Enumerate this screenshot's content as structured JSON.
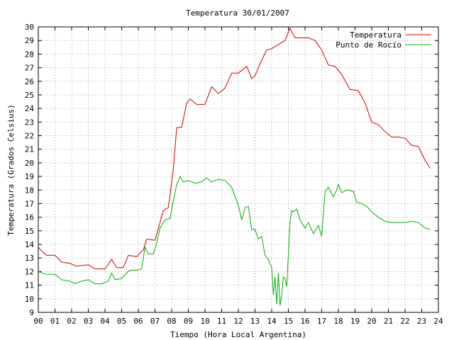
{
  "chart_data": {
    "type": "line",
    "title": "Temperatura 30/01/2007",
    "xlabel": "Tiempo (Hora Local Argentina)",
    "ylabel": "Temperatura (Grados Celsius)",
    "xlim": [
      0,
      24
    ],
    "ylim": [
      9,
      30
    ],
    "xticks": [
      "00",
      "01",
      "02",
      "03",
      "04",
      "05",
      "06",
      "07",
      "08",
      "09",
      "10",
      "11",
      "12",
      "13",
      "14",
      "15",
      "16",
      "17",
      "18",
      "19",
      "20",
      "21",
      "22",
      "23",
      "24"
    ],
    "yticks": [
      9,
      10,
      11,
      12,
      13,
      14,
      15,
      16,
      17,
      18,
      19,
      20,
      21,
      22,
      23,
      24,
      25,
      26,
      27,
      28,
      29,
      30
    ],
    "grid": true,
    "legend_position": "top-right",
    "series": [
      {
        "name": "Temperatura",
        "color": "#cc0000",
        "x": [
          0,
          0.2,
          0.5,
          1.0,
          1.4,
          1.9,
          2.3,
          3.0,
          3.4,
          4.0,
          4.4,
          4.7,
          5.1,
          5.4,
          5.9,
          6.3,
          6.5,
          7.0,
          7.3,
          7.5,
          7.8,
          8.1,
          8.3,
          8.6,
          8.9,
          9.1,
          9.5,
          10.0,
          10.4,
          10.8,
          11.2,
          11.6,
          12.0,
          12.5,
          12.8,
          13.0,
          13.3,
          13.7,
          14.0,
          14.4,
          14.8,
          15.1,
          15.4,
          15.8,
          16.2,
          16.6,
          17.0,
          17.4,
          17.8,
          18.2,
          18.7,
          19.2,
          19.6,
          20.0,
          20.4,
          20.8,
          21.2,
          21.6,
          22.0,
          22.4,
          22.8,
          23.2,
          23.5
        ],
        "y": [
          13.8,
          13.5,
          13.2,
          13.2,
          12.7,
          12.6,
          12.4,
          12.5,
          12.2,
          12.2,
          12.9,
          12.3,
          12.3,
          13.2,
          13.1,
          13.6,
          14.4,
          14.3,
          15.6,
          16.5,
          16.7,
          19.5,
          22.6,
          22.6,
          24.4,
          24.7,
          24.3,
          24.3,
          25.6,
          25.1,
          25.5,
          26.6,
          26.6,
          27.1,
          26.2,
          26.4,
          27.3,
          28.3,
          28.4,
          28.7,
          29.0,
          29.9,
          29.2,
          29.2,
          29.2,
          29.0,
          28.3,
          27.2,
          27.1,
          26.5,
          25.4,
          25.3,
          24.4,
          23.0,
          22.8,
          22.3,
          21.9,
          21.9,
          21.8,
          21.3,
          21.2,
          20.2,
          19.6
        ]
      },
      {
        "name": "Punto de Rocío",
        "color": "#00b000",
        "x": [
          0,
          0.2,
          0.5,
          1.0,
          1.4,
          1.9,
          2.2,
          2.6,
          3.0,
          3.4,
          3.8,
          4.2,
          4.4,
          4.6,
          5.0,
          5.3,
          5.5,
          5.9,
          6.2,
          6.4,
          6.6,
          6.9,
          7.1,
          7.3,
          7.6,
          7.9,
          8.1,
          8.3,
          8.5,
          8.7,
          9.0,
          9.4,
          9.8,
          10.1,
          10.4,
          10.8,
          11.2,
          11.6,
          12.0,
          12.2,
          12.4,
          12.6,
          12.8,
          13.0,
          13.2,
          13.4,
          13.6,
          13.8,
          14.0,
          14.1,
          14.2,
          14.3,
          14.4,
          14.5,
          14.6,
          14.7,
          14.8,
          14.9,
          15.0,
          15.1,
          15.2,
          15.3,
          15.5,
          15.7,
          16.0,
          16.2,
          16.5,
          16.8,
          17.0,
          17.2,
          17.4,
          17.7,
          17.9,
          18.0,
          18.2,
          18.5,
          18.9,
          19.1,
          19.4,
          19.7,
          20.0,
          20.4,
          20.8,
          21.2,
          21.6,
          22.0,
          22.4,
          22.8,
          23.2,
          23.5
        ],
        "y": [
          12.0,
          11.9,
          11.8,
          11.8,
          11.4,
          11.3,
          11.1,
          11.3,
          11.4,
          11.1,
          11.1,
          11.3,
          11.9,
          11.4,
          11.5,
          11.9,
          12.1,
          12.1,
          12.2,
          13.8,
          13.3,
          13.3,
          14.1,
          15.2,
          15.8,
          15.9,
          17.2,
          18.4,
          19.0,
          18.6,
          18.7,
          18.5,
          18.6,
          18.9,
          18.6,
          18.8,
          18.7,
          18.2,
          16.9,
          15.8,
          16.7,
          16.8,
          15.1,
          15.1,
          14.4,
          14.6,
          13.2,
          12.9,
          12.3,
          10.3,
          11.6,
          9.6,
          11.9,
          9.5,
          10.3,
          11.6,
          11.5,
          10.9,
          13.2,
          15.6,
          16.5,
          16.4,
          16.6,
          15.8,
          15.2,
          15.6,
          14.8,
          15.4,
          14.6,
          17.9,
          18.2,
          17.5,
          18.0,
          18.4,
          17.8,
          18.0,
          17.9,
          17.1,
          17.0,
          16.8,
          16.4,
          16.0,
          15.7,
          15.6,
          15.6,
          15.6,
          15.7,
          15.6,
          15.2,
          15.1
        ]
      }
    ]
  }
}
